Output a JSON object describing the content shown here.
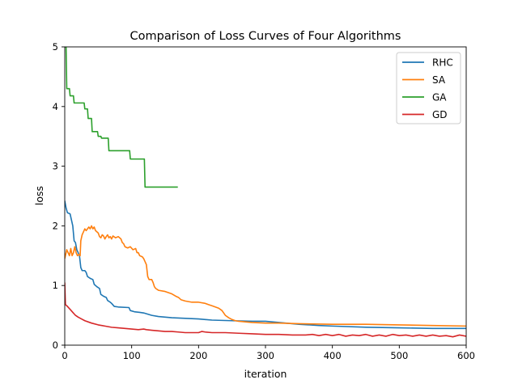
{
  "chart_data": {
    "type": "line",
    "title": "Comparison of Loss Curves of Four Algorithms",
    "xlabel": "iteration",
    "ylabel": "loss",
    "xlim": [
      0,
      600
    ],
    "ylim": [
      0,
      5
    ],
    "xticks": [
      0,
      100,
      200,
      300,
      400,
      500,
      600
    ],
    "yticks": [
      0,
      1,
      2,
      3,
      4,
      5
    ],
    "grid": false,
    "legend_position": "top-right",
    "series": [
      {
        "name": "RHC",
        "color": "#1f77b4",
        "points": [
          [
            0,
            2.42
          ],
          [
            2,
            2.3
          ],
          [
            4,
            2.22
          ],
          [
            8,
            2.2
          ],
          [
            10,
            2.1
          ],
          [
            12,
            2.0
          ],
          [
            14,
            1.75
          ],
          [
            16,
            1.72
          ],
          [
            18,
            1.6
          ],
          [
            20,
            1.55
          ],
          [
            22,
            1.5
          ],
          [
            24,
            1.3
          ],
          [
            26,
            1.25
          ],
          [
            30,
            1.25
          ],
          [
            32,
            1.22
          ],
          [
            34,
            1.15
          ],
          [
            38,
            1.12
          ],
          [
            42,
            1.1
          ],
          [
            44,
            1.02
          ],
          [
            48,
            0.98
          ],
          [
            52,
            0.95
          ],
          [
            54,
            0.85
          ],
          [
            58,
            0.82
          ],
          [
            62,
            0.8
          ],
          [
            64,
            0.75
          ],
          [
            68,
            0.72
          ],
          [
            70,
            0.7
          ],
          [
            74,
            0.65
          ],
          [
            80,
            0.64
          ],
          [
            96,
            0.63
          ],
          [
            98,
            0.58
          ],
          [
            104,
            0.56
          ],
          [
            112,
            0.55
          ],
          [
            118,
            0.54
          ],
          [
            124,
            0.52
          ],
          [
            130,
            0.5
          ],
          [
            140,
            0.48
          ],
          [
            150,
            0.47
          ],
          [
            160,
            0.46
          ],
          [
            180,
            0.45
          ],
          [
            200,
            0.44
          ],
          [
            220,
            0.42
          ],
          [
            250,
            0.41
          ],
          [
            280,
            0.4
          ],
          [
            300,
            0.4
          ],
          [
            320,
            0.38
          ],
          [
            350,
            0.35
          ],
          [
            380,
            0.33
          ],
          [
            400,
            0.32
          ],
          [
            450,
            0.3
          ],
          [
            500,
            0.29
          ],
          [
            550,
            0.28
          ],
          [
            600,
            0.28
          ]
        ]
      },
      {
        "name": "SA",
        "color": "#ff7f0e",
        "points": [
          [
            0,
            1.45
          ],
          [
            1,
            1.5
          ],
          [
            3,
            1.6
          ],
          [
            5,
            1.55
          ],
          [
            7,
            1.5
          ],
          [
            9,
            1.62
          ],
          [
            11,
            1.5
          ],
          [
            13,
            1.55
          ],
          [
            15,
            1.65
          ],
          [
            17,
            1.55
          ],
          [
            19,
            1.5
          ],
          [
            21,
            1.52
          ],
          [
            23,
            1.5
          ],
          [
            24,
            1.75
          ],
          [
            26,
            1.85
          ],
          [
            28,
            1.9
          ],
          [
            30,
            1.95
          ],
          [
            32,
            1.92
          ],
          [
            34,
            1.95
          ],
          [
            36,
            1.98
          ],
          [
            38,
            1.95
          ],
          [
            40,
            2.0
          ],
          [
            42,
            1.95
          ],
          [
            44,
            1.98
          ],
          [
            46,
            1.92
          ],
          [
            48,
            1.9
          ],
          [
            50,
            1.88
          ],
          [
            52,
            1.82
          ],
          [
            54,
            1.8
          ],
          [
            56,
            1.85
          ],
          [
            58,
            1.83
          ],
          [
            60,
            1.78
          ],
          [
            62,
            1.82
          ],
          [
            64,
            1.85
          ],
          [
            66,
            1.8
          ],
          [
            68,
            1.82
          ],
          [
            70,
            1.78
          ],
          [
            72,
            1.83
          ],
          [
            76,
            1.8
          ],
          [
            80,
            1.82
          ],
          [
            84,
            1.78
          ],
          [
            86,
            1.72
          ],
          [
            88,
            1.7
          ],
          [
            90,
            1.65
          ],
          [
            94,
            1.63
          ],
          [
            98,
            1.65
          ],
          [
            102,
            1.6
          ],
          [
            106,
            1.62
          ],
          [
            108,
            1.55
          ],
          [
            110,
            1.55
          ],
          [
            112,
            1.5
          ],
          [
            116,
            1.48
          ],
          [
            118,
            1.45
          ],
          [
            120,
            1.4
          ],
          [
            122,
            1.35
          ],
          [
            124,
            1.15
          ],
          [
            126,
            1.1
          ],
          [
            130,
            1.1
          ],
          [
            132,
            1.05
          ],
          [
            134,
            0.98
          ],
          [
            136,
            0.95
          ],
          [
            140,
            0.92
          ],
          [
            150,
            0.9
          ],
          [
            160,
            0.86
          ],
          [
            166,
            0.82
          ],
          [
            170,
            0.8
          ],
          [
            174,
            0.76
          ],
          [
            180,
            0.74
          ],
          [
            190,
            0.72
          ],
          [
            200,
            0.72
          ],
          [
            210,
            0.7
          ],
          [
            215,
            0.68
          ],
          [
            220,
            0.66
          ],
          [
            225,
            0.64
          ],
          [
            230,
            0.62
          ],
          [
            235,
            0.58
          ],
          [
            240,
            0.5
          ],
          [
            245,
            0.46
          ],
          [
            250,
            0.43
          ],
          [
            255,
            0.41
          ],
          [
            260,
            0.4
          ],
          [
            270,
            0.39
          ],
          [
            280,
            0.38
          ],
          [
            300,
            0.37
          ],
          [
            320,
            0.37
          ],
          [
            350,
            0.36
          ],
          [
            400,
            0.35
          ],
          [
            450,
            0.35
          ],
          [
            500,
            0.34
          ],
          [
            550,
            0.33
          ],
          [
            600,
            0.32
          ]
        ]
      },
      {
        "name": "GA",
        "color": "#2ca02c",
        "points": [
          [
            0,
            5.0
          ],
          [
            2,
            5.0
          ],
          [
            3,
            4.3
          ],
          [
            7,
            4.3
          ],
          [
            8,
            4.18
          ],
          [
            13,
            4.18
          ],
          [
            14,
            4.06
          ],
          [
            29,
            4.06
          ],
          [
            30,
            3.96
          ],
          [
            34,
            3.96
          ],
          [
            35,
            3.8
          ],
          [
            40,
            3.8
          ],
          [
            41,
            3.58
          ],
          [
            49,
            3.58
          ],
          [
            50,
            3.5
          ],
          [
            54,
            3.5
          ],
          [
            55,
            3.47
          ],
          [
            65,
            3.47
          ],
          [
            66,
            3.26
          ],
          [
            97,
            3.26
          ],
          [
            98,
            3.12
          ],
          [
            119,
            3.12
          ],
          [
            120,
            2.65
          ],
          [
            169,
            2.65
          ]
        ]
      },
      {
        "name": "GD",
        "color": "#d62728",
        "points": [
          [
            0,
            1.05
          ],
          [
            1,
            0.68
          ],
          [
            4,
            0.65
          ],
          [
            8,
            0.6
          ],
          [
            12,
            0.55
          ],
          [
            16,
            0.5
          ],
          [
            20,
            0.47
          ],
          [
            25,
            0.44
          ],
          [
            30,
            0.41
          ],
          [
            40,
            0.37
          ],
          [
            50,
            0.34
          ],
          [
            60,
            0.32
          ],
          [
            70,
            0.3
          ],
          [
            80,
            0.29
          ],
          [
            90,
            0.28
          ],
          [
            100,
            0.27
          ],
          [
            110,
            0.26
          ],
          [
            118,
            0.27
          ],
          [
            122,
            0.26
          ],
          [
            130,
            0.25
          ],
          [
            140,
            0.24
          ],
          [
            150,
            0.23
          ],
          [
            160,
            0.23
          ],
          [
            170,
            0.22
          ],
          [
            180,
            0.21
          ],
          [
            190,
            0.21
          ],
          [
            200,
            0.21
          ],
          [
            205,
            0.23
          ],
          [
            210,
            0.22
          ],
          [
            220,
            0.21
          ],
          [
            240,
            0.21
          ],
          [
            260,
            0.2
          ],
          [
            280,
            0.19
          ],
          [
            300,
            0.18
          ],
          [
            320,
            0.18
          ],
          [
            340,
            0.17
          ],
          [
            360,
            0.17
          ],
          [
            370,
            0.18
          ],
          [
            380,
            0.16
          ],
          [
            390,
            0.18
          ],
          [
            400,
            0.16
          ],
          [
            410,
            0.18
          ],
          [
            420,
            0.15
          ],
          [
            430,
            0.17
          ],
          [
            440,
            0.16
          ],
          [
            450,
            0.18
          ],
          [
            460,
            0.15
          ],
          [
            470,
            0.17
          ],
          [
            480,
            0.15
          ],
          [
            490,
            0.18
          ],
          [
            500,
            0.16
          ],
          [
            510,
            0.17
          ],
          [
            520,
            0.15
          ],
          [
            530,
            0.17
          ],
          [
            540,
            0.15
          ],
          [
            550,
            0.17
          ],
          [
            560,
            0.15
          ],
          [
            570,
            0.16
          ],
          [
            580,
            0.14
          ],
          [
            590,
            0.17
          ],
          [
            600,
            0.15
          ]
        ]
      }
    ]
  }
}
